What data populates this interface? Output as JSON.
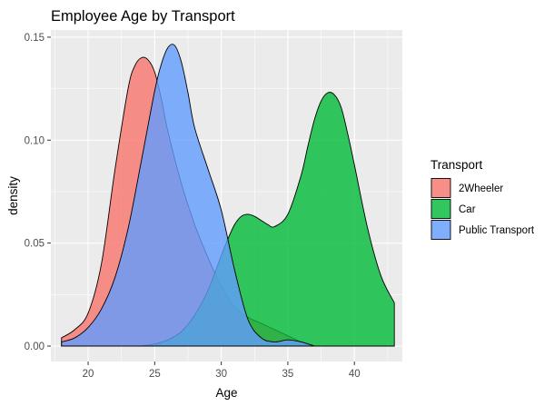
{
  "chart_data": {
    "type": "area",
    "title": "Employee Age by Transport",
    "xlabel": "Age",
    "ylabel": "density",
    "xlim": [
      17.2,
      43.6
    ],
    "ylim": [
      -0.0075,
      0.1535
    ],
    "x_ticks": [
      20,
      25,
      30,
      35,
      40
    ],
    "x_tick_labels": [
      "20",
      "25",
      "30",
      "35",
      "40"
    ],
    "y_ticks": [
      0,
      0.05,
      0.1,
      0.15
    ],
    "y_tick_labels": [
      "0.00",
      "0.05",
      "0.10",
      "0.15"
    ],
    "grid": true,
    "legend": {
      "title": "Transport",
      "position": "right"
    },
    "series": [
      {
        "name": "2Wheeler",
        "color": "#F8766D",
        "opacity": 0.8,
        "x": [
          18,
          19,
          20,
          21,
          22,
          23,
          23.5,
          24,
          24.5,
          25,
          25.5,
          26,
          27,
          28,
          29,
          30,
          31,
          32,
          33,
          34,
          35,
          36,
          37
        ],
        "y": [
          0.004,
          0.008,
          0.016,
          0.04,
          0.085,
          0.125,
          0.136,
          0.14,
          0.139,
          0.133,
          0.12,
          0.104,
          0.079,
          0.059,
          0.043,
          0.029,
          0.019,
          0.014,
          0.011,
          0.008,
          0.005,
          0.002,
          0.0
        ]
      },
      {
        "name": "Car",
        "color": "#00BA38",
        "opacity": 0.8,
        "x": [
          24,
          25,
          26,
          27,
          28,
          29,
          30,
          30.5,
          31,
          31.5,
          32,
          32.5,
          33,
          33.5,
          34,
          35,
          36,
          36.5,
          37,
          37.5,
          38,
          38.5,
          39,
          39.5,
          40,
          41,
          42,
          43
        ],
        "y": [
          0.0,
          0.001,
          0.003,
          0.007,
          0.015,
          0.027,
          0.044,
          0.052,
          0.059,
          0.063,
          0.064,
          0.063,
          0.061,
          0.059,
          0.058,
          0.064,
          0.083,
          0.097,
          0.11,
          0.119,
          0.123,
          0.122,
          0.116,
          0.103,
          0.088,
          0.057,
          0.034,
          0.021
        ]
      },
      {
        "name": "Public Transport",
        "color": "#619CFF",
        "opacity": 0.8,
        "x": [
          18,
          19,
          20,
          21,
          22,
          23,
          24,
          25,
          25.5,
          26,
          26.5,
          27,
          27.5,
          28,
          29,
          30,
          31,
          32,
          33,
          34,
          35,
          36,
          37
        ],
        "y": [
          0.002,
          0.004,
          0.009,
          0.018,
          0.033,
          0.057,
          0.09,
          0.124,
          0.137,
          0.145,
          0.146,
          0.138,
          0.123,
          0.106,
          0.086,
          0.066,
          0.037,
          0.013,
          0.004,
          0.002,
          0.003,
          0.002,
          0.0
        ]
      }
    ]
  }
}
